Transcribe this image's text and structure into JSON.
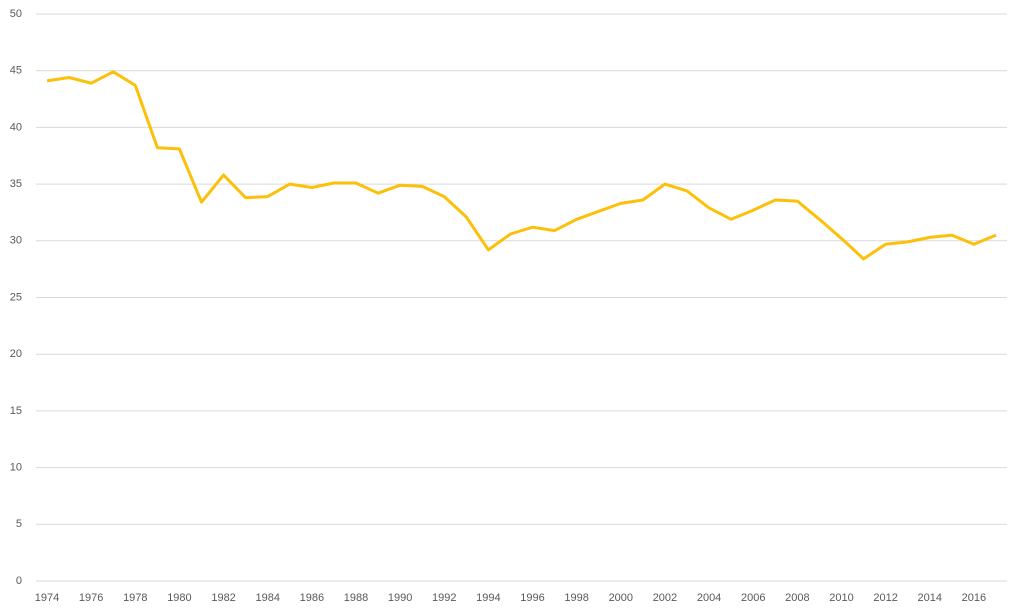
{
  "chart_data": {
    "type": "line",
    "categories": [
      "1974",
      null,
      "1976",
      null,
      "1978",
      null,
      "1980",
      null,
      "1982",
      null,
      "1984",
      null,
      "1986",
      null,
      "1988",
      null,
      "1990",
      null,
      "1992",
      null,
      "1994",
      null,
      "1996",
      null,
      "1998",
      null,
      "2000",
      null,
      "2002",
      null,
      "2004",
      null,
      "2006",
      null,
      "2008",
      null,
      "2010",
      null,
      "2012",
      null,
      "2014",
      null,
      "2016",
      null
    ],
    "values": [
      44.1,
      44.4,
      43.9,
      44.9,
      43.7,
      38.2,
      38.1,
      33.4,
      35.8,
      33.8,
      33.9,
      35.0,
      34.7,
      35.1,
      35.1,
      34.2,
      34.9,
      34.8,
      33.9,
      32.1,
      29.2,
      30.6,
      31.2,
      30.9,
      31.9,
      32.6,
      33.3,
      33.6,
      35.0,
      34.4,
      32.9,
      31.9,
      32.7,
      33.6,
      33.5,
      31.9,
      30.2,
      28.4,
      29.7,
      29.9,
      30.3,
      30.5,
      29.7,
      30.5
    ],
    "color": "#fcc00a",
    "ylim": [
      0,
      50
    ],
    "yticks": [
      0,
      5,
      10,
      15,
      20,
      25,
      30,
      35,
      40,
      45,
      50
    ],
    "grid": true
  }
}
